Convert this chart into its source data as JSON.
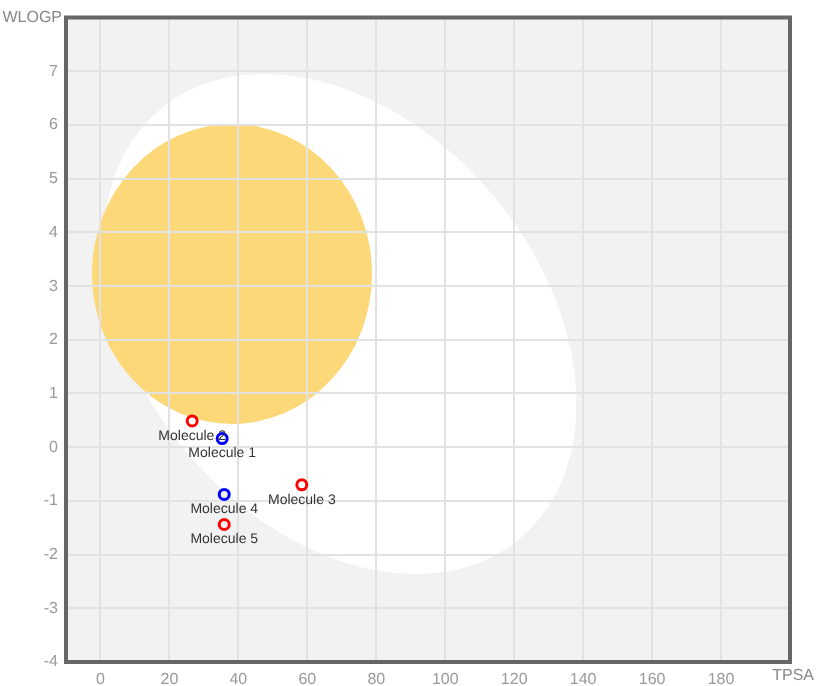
{
  "chart_data": {
    "type": "scatter",
    "xlabel": "TPSA",
    "ylabel": "WLOGP",
    "x": [
      35.3,
      26.6,
      58.4,
      35.9,
      35.9
    ],
    "values": [
      0.16,
      0.49,
      -0.7,
      -0.88,
      -1.44
    ],
    "colors": [
      "#0000ff",
      "#ff0000",
      "#ff0000",
      "#0000ff",
      "#ff0000"
    ],
    "annotations": [
      {
        "text": "Molecule 1",
        "x": 35.3,
        "y": 0.16
      },
      {
        "text": "Molecule 2",
        "x": 26.6,
        "y": 0.49
      },
      {
        "text": "Molecule 3",
        "x": 58.4,
        "y": -0.7
      },
      {
        "text": "Molecule 4",
        "x": 35.9,
        "y": -0.88
      },
      {
        "text": "Molecule 5",
        "x": 35.9,
        "y": -1.44
      }
    ],
    "xlim": [
      -10,
      200
    ],
    "xticks": [
      0,
      20,
      40,
      60,
      80,
      100,
      120,
      140,
      160,
      180
    ],
    "ylim": [
      -4,
      8
    ],
    "yticks": [
      -4,
      -3,
      -2,
      -1,
      0,
      1,
      2,
      3,
      4,
      5,
      6,
      7
    ],
    "grid": true,
    "marker": "circle",
    "legend": false
  }
}
